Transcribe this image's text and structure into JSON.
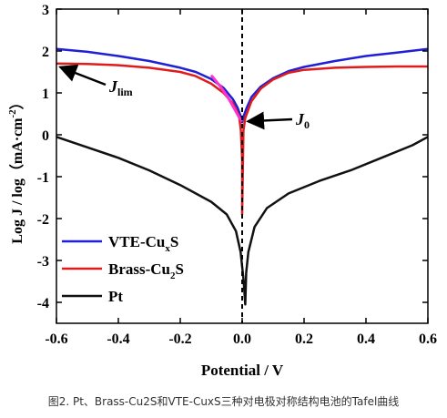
{
  "chart_data": {
    "type": "line",
    "xlabel": "Potential / V",
    "ylabel_main": "Log J / log（mA·cm",
    "ylabel_sup": "-2",
    "ylabel_close": "）",
    "xlim": [
      -0.6,
      0.6
    ],
    "ylim": [
      -4.5,
      3
    ],
    "xticks": [
      -0.6,
      -0.4,
      -0.2,
      0.0,
      0.2,
      0.4,
      0.6
    ],
    "xtick_labels": [
      "-0.6",
      "-0.4",
      "-0.2",
      "0.0",
      "0.2",
      "0.4",
      "0.6"
    ],
    "yticks": [
      3,
      2,
      1,
      0,
      -1,
      -2,
      -3,
      -4
    ],
    "ytick_labels": [
      "3",
      "2",
      "1",
      "0",
      "-1",
      "-2",
      "-3",
      "-4"
    ],
    "vline_x": 0.0,
    "legend_position": "bottom-left",
    "series": [
      {
        "name": "VTE-CuxS",
        "legend_base": "VTE-Cu",
        "legend_sub": "x",
        "legend_tail": "S",
        "color": "#1f1fd6",
        "points": [
          [
            -0.6,
            2.05
          ],
          [
            -0.5,
            1.98
          ],
          [
            -0.4,
            1.88
          ],
          [
            -0.3,
            1.76
          ],
          [
            -0.2,
            1.6
          ],
          [
            -0.15,
            1.5
          ],
          [
            -0.1,
            1.33
          ],
          [
            -0.06,
            1.12
          ],
          [
            -0.03,
            0.85
          ],
          [
            -0.015,
            0.65
          ],
          [
            -0.005,
            0.45
          ],
          [
            0.0,
            0.3
          ],
          [
            0.005,
            0.45
          ],
          [
            0.015,
            0.65
          ],
          [
            0.03,
            0.9
          ],
          [
            0.06,
            1.15
          ],
          [
            0.1,
            1.35
          ],
          [
            0.15,
            1.52
          ],
          [
            0.2,
            1.62
          ],
          [
            0.3,
            1.76
          ],
          [
            0.4,
            1.88
          ],
          [
            0.5,
            1.96
          ],
          [
            0.6,
            2.05
          ]
        ]
      },
      {
        "name": "Brass-Cu2S",
        "legend_base": "Brass-Cu",
        "legend_sub": "2",
        "legend_tail": "S",
        "color": "#e01b1b",
        "points": [
          [
            -0.6,
            1.7
          ],
          [
            -0.5,
            1.69
          ],
          [
            -0.4,
            1.66
          ],
          [
            -0.3,
            1.6
          ],
          [
            -0.2,
            1.5
          ],
          [
            -0.15,
            1.4
          ],
          [
            -0.1,
            1.22
          ],
          [
            -0.06,
            1.0
          ],
          [
            -0.03,
            0.75
          ],
          [
            -0.01,
            0.45
          ],
          [
            -0.004,
            0.1
          ],
          [
            0.0,
            -0.6
          ],
          [
            0.0,
            -1.9
          ],
          [
            0.004,
            0.1
          ],
          [
            0.01,
            0.4
          ],
          [
            0.03,
            0.8
          ],
          [
            0.06,
            1.1
          ],
          [
            0.1,
            1.32
          ],
          [
            0.15,
            1.48
          ],
          [
            0.2,
            1.55
          ],
          [
            0.3,
            1.6
          ],
          [
            0.4,
            1.62
          ],
          [
            0.5,
            1.63
          ],
          [
            0.6,
            1.63
          ]
        ]
      },
      {
        "name": "Pt",
        "legend_base": "Pt",
        "legend_sub": "",
        "legend_tail": "",
        "color": "#111111",
        "points": [
          [
            -0.6,
            -0.05
          ],
          [
            -0.5,
            -0.3
          ],
          [
            -0.4,
            -0.55
          ],
          [
            -0.3,
            -0.85
          ],
          [
            -0.2,
            -1.2
          ],
          [
            -0.1,
            -1.6
          ],
          [
            -0.05,
            -1.9
          ],
          [
            -0.02,
            -2.3
          ],
          [
            -0.005,
            -2.8
          ],
          [
            0.005,
            -3.5
          ],
          [
            0.01,
            -4.05
          ],
          [
            0.013,
            -3.3
          ],
          [
            0.02,
            -2.8
          ],
          [
            0.04,
            -2.2
          ],
          [
            0.08,
            -1.75
          ],
          [
            0.15,
            -1.4
          ],
          [
            0.25,
            -1.1
          ],
          [
            0.35,
            -0.85
          ],
          [
            0.45,
            -0.55
          ],
          [
            0.55,
            -0.25
          ],
          [
            0.6,
            -0.05
          ]
        ]
      },
      {
        "name": "fit",
        "color": "#ff33cc",
        "points": [
          [
            -0.1,
            1.42
          ],
          [
            -0.07,
            1.15
          ],
          [
            -0.045,
            0.88
          ],
          [
            -0.025,
            0.62
          ],
          [
            -0.01,
            0.42
          ],
          [
            0.0,
            0.32
          ]
        ]
      }
    ],
    "annotations": [
      {
        "id": "jlim",
        "main": "J",
        "sub": "lim",
        "arrow_to": [
          -0.6,
          1.66
        ]
      },
      {
        "id": "j0",
        "main": "J",
        "sub": "0",
        "arrow_to": [
          0.012,
          0.32
        ]
      }
    ]
  },
  "caption": "图2. Pt、Brass-Cu2S和VTE-CuxS三种对电极对称结构电池的Tafel曲线"
}
